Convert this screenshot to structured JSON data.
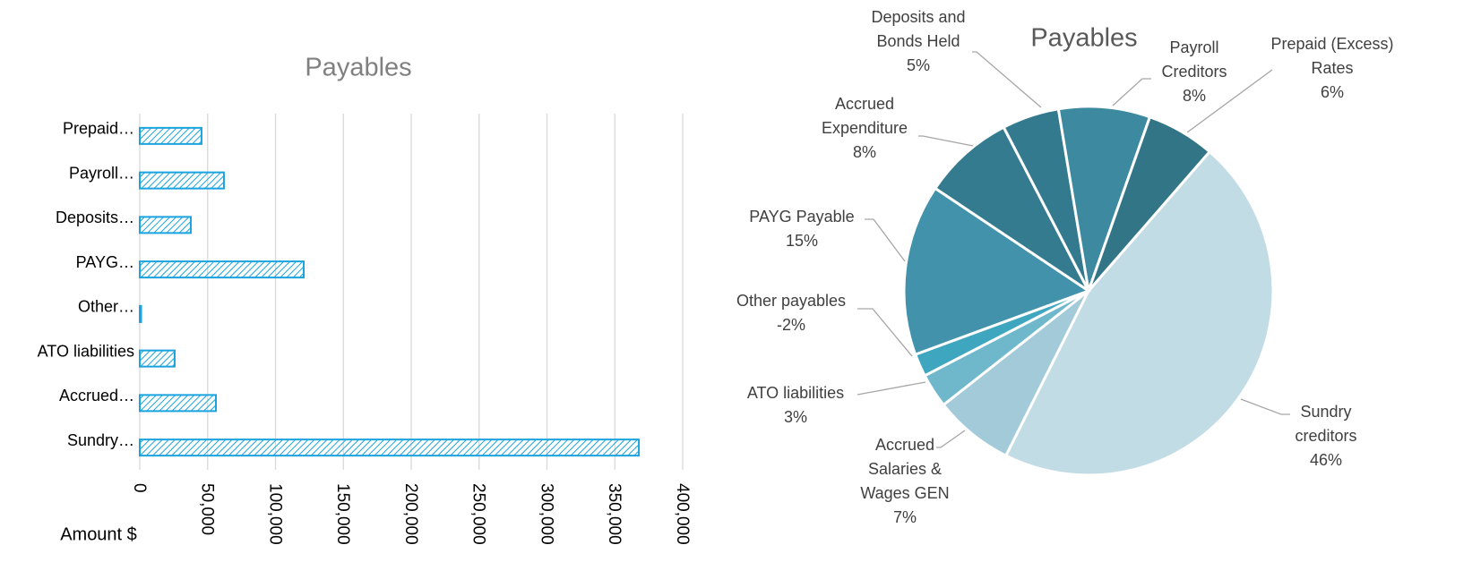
{
  "chart_data": [
    {
      "type": "hbar",
      "title": "Payables",
      "x_label": "Amount $",
      "categories": [
        "Prepaid…",
        "Payroll…",
        "Deposits…",
        "PAYG…",
        "Other…",
        "ATO liabilities",
        "Accrued…",
        "Sundry…"
      ],
      "values": [
        45500,
        62000,
        37600,
        120800,
        1000,
        25700,
        56100,
        367700
      ],
      "color": "#1aa3de",
      "xlim": [
        0,
        400000
      ],
      "xticks": [
        0,
        {
          "value": 50000,
          "label": "50,000"
        },
        {
          "value": 100000,
          "label": "100,000"
        },
        {
          "value": 150000,
          "label": "150,000"
        },
        {
          "value": 200000,
          "label": "200,000"
        },
        {
          "value": 250000,
          "label": "250,000"
        },
        {
          "value": 300000,
          "label": "300,000"
        },
        {
          "value": 350000,
          "label": "350,000"
        },
        {
          "value": 400000,
          "label": "400,000"
        }
      ],
      "grid": true
    },
    {
      "type": "pie",
      "title": "Payables",
      "categories": [
        "Sundry creditors",
        "Accrued Salaries & Wages GEN",
        "ATO liabilities",
        "Other payables",
        "PAYG Payable",
        "Accrued Expenditure",
        "Deposits and Bonds Held",
        "Payroll Creditors",
        "Prepaid (Excess) Rates"
      ],
      "values": [
        46,
        7,
        3,
        -2,
        15,
        8,
        5,
        8,
        6
      ],
      "value_labels": [
        "46%",
        "7%",
        "3%",
        "-2%",
        "15%",
        "8%",
        "5%",
        "8%",
        "6%"
      ],
      "colors": [
        "#c2dce6",
        "#a3cad8",
        "#6fb8cc",
        "#3fa6c0",
        "#4292ac",
        "#357b90",
        "#347a8e",
        "#3d89a0",
        "#327587"
      ]
    }
  ]
}
